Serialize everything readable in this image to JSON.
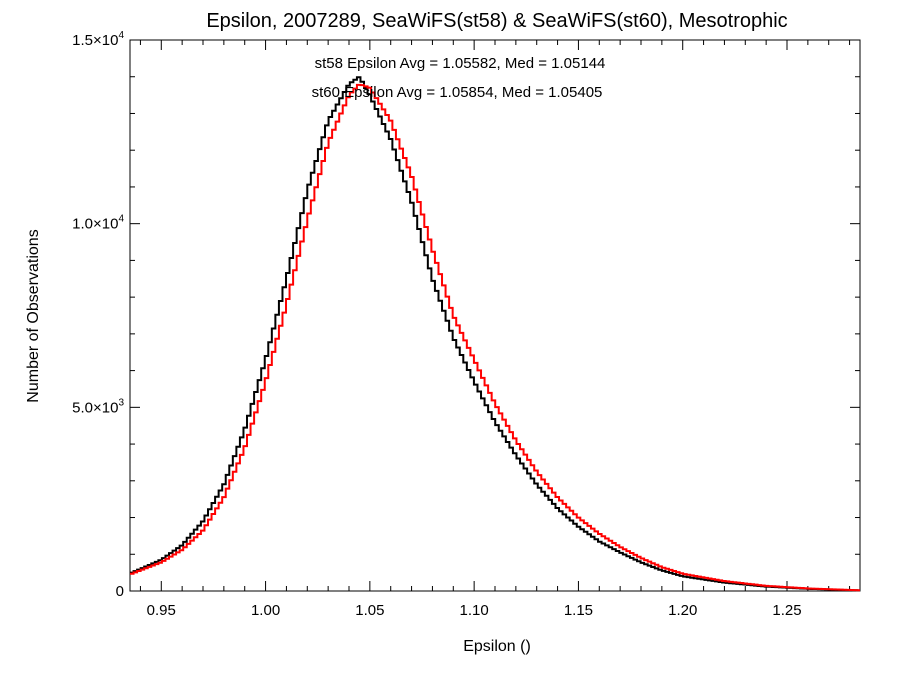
{
  "chart_data": {
    "type": "line",
    "style": "histogram-step",
    "title": "Epsilon, 2007289, SeaWiFS(st58) & SeaWiFS(st60), Mesotrophic",
    "xlabel": "Epsilon ()",
    "ylabel": "Number of Observations",
    "xlim": [
      0.935,
      1.285
    ],
    "ylim": [
      0,
      15000
    ],
    "x_ticks": [
      0.95,
      1.0,
      1.05,
      1.1,
      1.15,
      1.2,
      1.25
    ],
    "x_tick_labels": [
      "0.95",
      "1.00",
      "1.05",
      "1.10",
      "1.15",
      "1.20",
      "1.25"
    ],
    "y_ticks": [
      {
        "value": 0,
        "mantissa": "0",
        "exponent": ""
      },
      {
        "value": 5000,
        "mantissa": "5.0×10",
        "exponent": "3"
      },
      {
        "value": 10000,
        "mantissa": "1.0×10",
        "exponent": "4"
      },
      {
        "value": 15000,
        "mantissa": "1.5×10",
        "exponent": "4"
      }
    ],
    "grid": false,
    "annotations": [
      {
        "text": "st58 Epsilon Avg = 1.05582, Med = 1.05144",
        "color": "#000000"
      },
      {
        "text": "st60 Epsilon Avg = 1.05854, Med = 1.05405",
        "color": "#ff0000"
      }
    ],
    "series": [
      {
        "color": "#000000",
        "x": [
          0.935,
          0.94,
          0.95,
          0.96,
          0.97,
          0.98,
          0.99,
          1.0,
          1.01,
          1.02,
          1.03,
          1.04,
          1.045,
          1.05,
          1.06,
          1.07,
          1.08,
          1.09,
          1.1,
          1.11,
          1.12,
          1.13,
          1.14,
          1.15,
          1.16,
          1.17,
          1.18,
          1.19,
          1.2,
          1.22,
          1.24,
          1.26,
          1.285
        ],
        "y": [
          480,
          600,
          850,
          1250,
          1900,
          2900,
          4400,
          6300,
          8500,
          10900,
          12800,
          13800,
          14000,
          13500,
          12300,
          10600,
          8500,
          6900,
          5700,
          4600,
          3700,
          2900,
          2250,
          1750,
          1350,
          1050,
          780,
          560,
          400,
          230,
          120,
          60,
          15
        ]
      },
      {
        "color": "#ff0000",
        "x": [
          0.935,
          0.94,
          0.95,
          0.96,
          0.97,
          0.98,
          0.99,
          1.0,
          1.01,
          1.02,
          1.03,
          1.04,
          1.045,
          1.05,
          1.06,
          1.07,
          1.08,
          1.09,
          1.1,
          1.11,
          1.12,
          1.13,
          1.14,
          1.15,
          1.16,
          1.17,
          1.18,
          1.19,
          1.2,
          1.22,
          1.24,
          1.26,
          1.285
        ],
        "y": [
          450,
          560,
          780,
          1120,
          1650,
          2550,
          3900,
          5700,
          7800,
          10100,
          12200,
          13500,
          13800,
          13700,
          12800,
          11300,
          9300,
          7500,
          6300,
          5100,
          4100,
          3250,
          2550,
          2000,
          1560,
          1200,
          900,
          650,
          470,
          270,
          140,
          70,
          20
        ]
      }
    ]
  }
}
